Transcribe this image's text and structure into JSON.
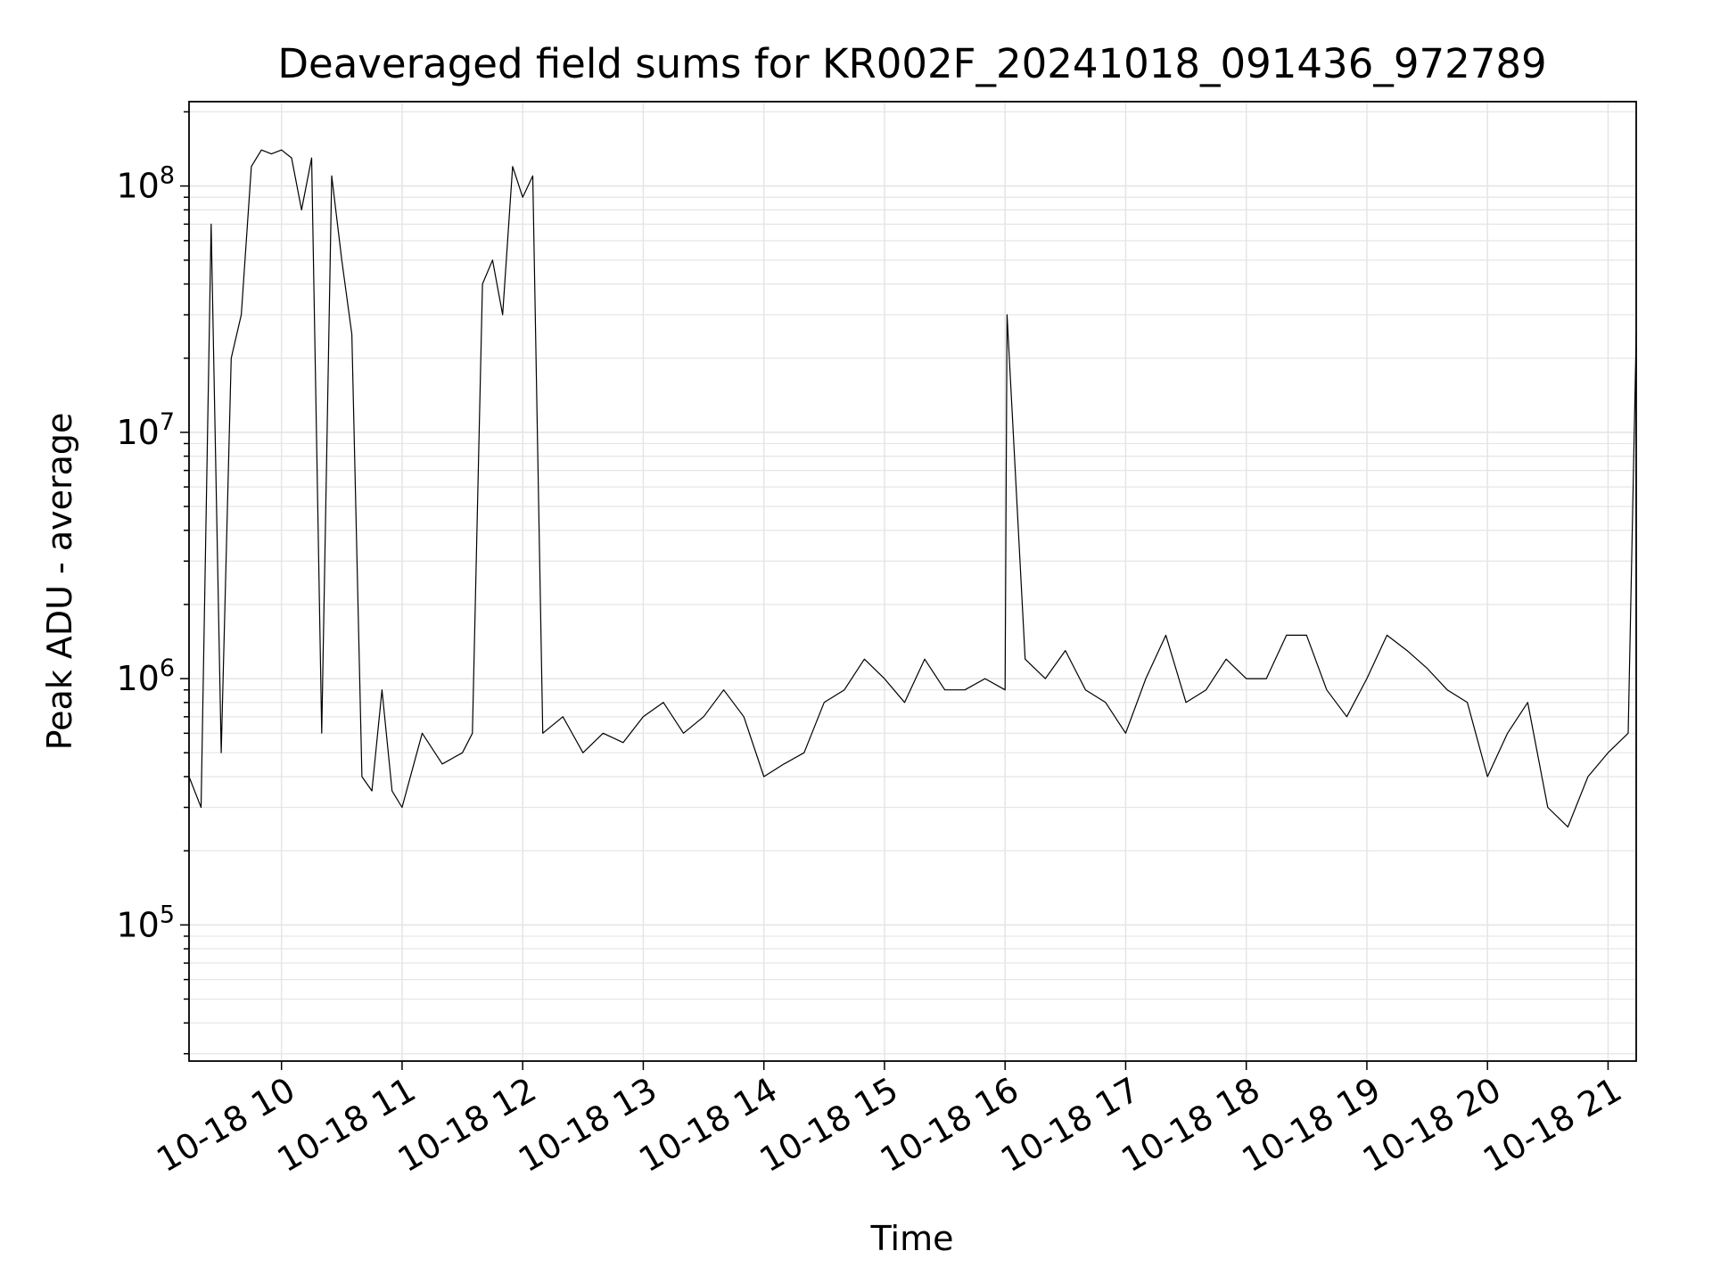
{
  "chart_data": {
    "type": "line",
    "title": "Deaveraged field sums for KR002F_20241018_091436_972789",
    "xlabel": "Time",
    "ylabel": "Peak ADU - average",
    "yscale": "log",
    "ylim": [
      28000,
      220000000
    ],
    "xlim": [
      "10-18 09:14",
      "10-18 21:14"
    ],
    "grid": true,
    "line_color": "#000000",
    "grid_color": "#e5e5e5",
    "x_tick_labels": [
      "10-18 10",
      "10-18 11",
      "10-18 12",
      "10-18 13",
      "10-18 14",
      "10-18 15",
      "10-18 16",
      "10-18 17",
      "10-18 18",
      "10-18 19",
      "10-18 20",
      "10-18 21"
    ],
    "y_tick_labels": [
      {
        "value": 100000,
        "base": "10",
        "exp": "5"
      },
      {
        "value": 1000000,
        "base": "10",
        "exp": "6"
      },
      {
        "value": 10000000,
        "base": "10",
        "exp": "7"
      },
      {
        "value": 100000000,
        "base": "10",
        "exp": "8"
      }
    ],
    "series": [
      {
        "x": [
          "10-18 09:14",
          "10-18 09:20",
          "10-18 09:25",
          "10-18 09:30",
          "10-18 09:35",
          "10-18 09:40",
          "10-18 09:45",
          "10-18 09:50",
          "10-18 09:55",
          "10-18 10:00",
          "10-18 10:05",
          "10-18 10:10",
          "10-18 10:15",
          "10-18 10:20",
          "10-18 10:25",
          "10-18 10:30",
          "10-18 10:35",
          "10-18 10:40",
          "10-18 10:45",
          "10-18 10:50",
          "10-18 10:55",
          "10-18 11:00",
          "10-18 11:10",
          "10-18 11:20",
          "10-18 11:30",
          "10-18 11:35",
          "10-18 11:40",
          "10-18 11:45",
          "10-18 11:50",
          "10-18 11:55",
          "10-18 12:00",
          "10-18 12:05",
          "10-18 12:10",
          "10-18 12:20",
          "10-18 12:30",
          "10-18 12:40",
          "10-18 12:50",
          "10-18 13:00",
          "10-18 13:10",
          "10-18 13:20",
          "10-18 13:30",
          "10-18 13:40",
          "10-18 13:50",
          "10-18 14:00",
          "10-18 14:10",
          "10-18 14:20",
          "10-18 14:30",
          "10-18 14:40",
          "10-18 14:50",
          "10-18 15:00",
          "10-18 15:10",
          "10-18 15:20",
          "10-18 15:30",
          "10-18 15:40",
          "10-18 15:50",
          "10-18 16:00",
          "10-18 16:01",
          "10-18 16:10",
          "10-18 16:20",
          "10-18 16:30",
          "10-18 16:40",
          "10-18 16:50",
          "10-18 17:00",
          "10-18 17:10",
          "10-18 17:20",
          "10-18 17:30",
          "10-18 17:40",
          "10-18 17:50",
          "10-18 18:00",
          "10-18 18:10",
          "10-18 18:20",
          "10-18 18:30",
          "10-18 18:40",
          "10-18 18:50",
          "10-18 19:00",
          "10-18 19:10",
          "10-18 19:20",
          "10-18 19:30",
          "10-18 19:40",
          "10-18 19:50",
          "10-18 20:00",
          "10-18 20:10",
          "10-18 20:20",
          "10-18 20:30",
          "10-18 20:40",
          "10-18 20:50",
          "10-18 21:00",
          "10-18 21:10",
          "10-18 21:14"
        ],
        "y": [
          400000,
          300000,
          70000000,
          500000,
          20000000,
          30000000,
          120000000,
          140000000,
          135000000,
          140000000,
          130000000,
          80000000,
          130000000,
          600000,
          110000000,
          50000000,
          25000000,
          400000,
          350000,
          900000,
          350000,
          300000,
          600000,
          450000,
          500000,
          600000,
          40000000,
          50000000,
          30000000,
          120000000,
          90000000,
          110000000,
          600000,
          700000,
          500000,
          600000,
          550000,
          700000,
          800000,
          600000,
          700000,
          900000,
          700000,
          400000,
          450000,
          500000,
          800000,
          900000,
          1200000,
          1000000,
          800000,
          1200000,
          900000,
          900000,
          1000000,
          900000,
          30000000,
          1200000,
          1000000,
          1300000,
          900000,
          800000,
          600000,
          1000000,
          1500000,
          800000,
          900000,
          1200000,
          1000000,
          1000000,
          1500000,
          1500000,
          900000,
          700000,
          1000000,
          1500000,
          1300000,
          1100000,
          900000,
          800000,
          400000,
          600000,
          800000,
          300000,
          250000,
          400000,
          500000,
          600000,
          25000000
        ]
      }
    ]
  }
}
